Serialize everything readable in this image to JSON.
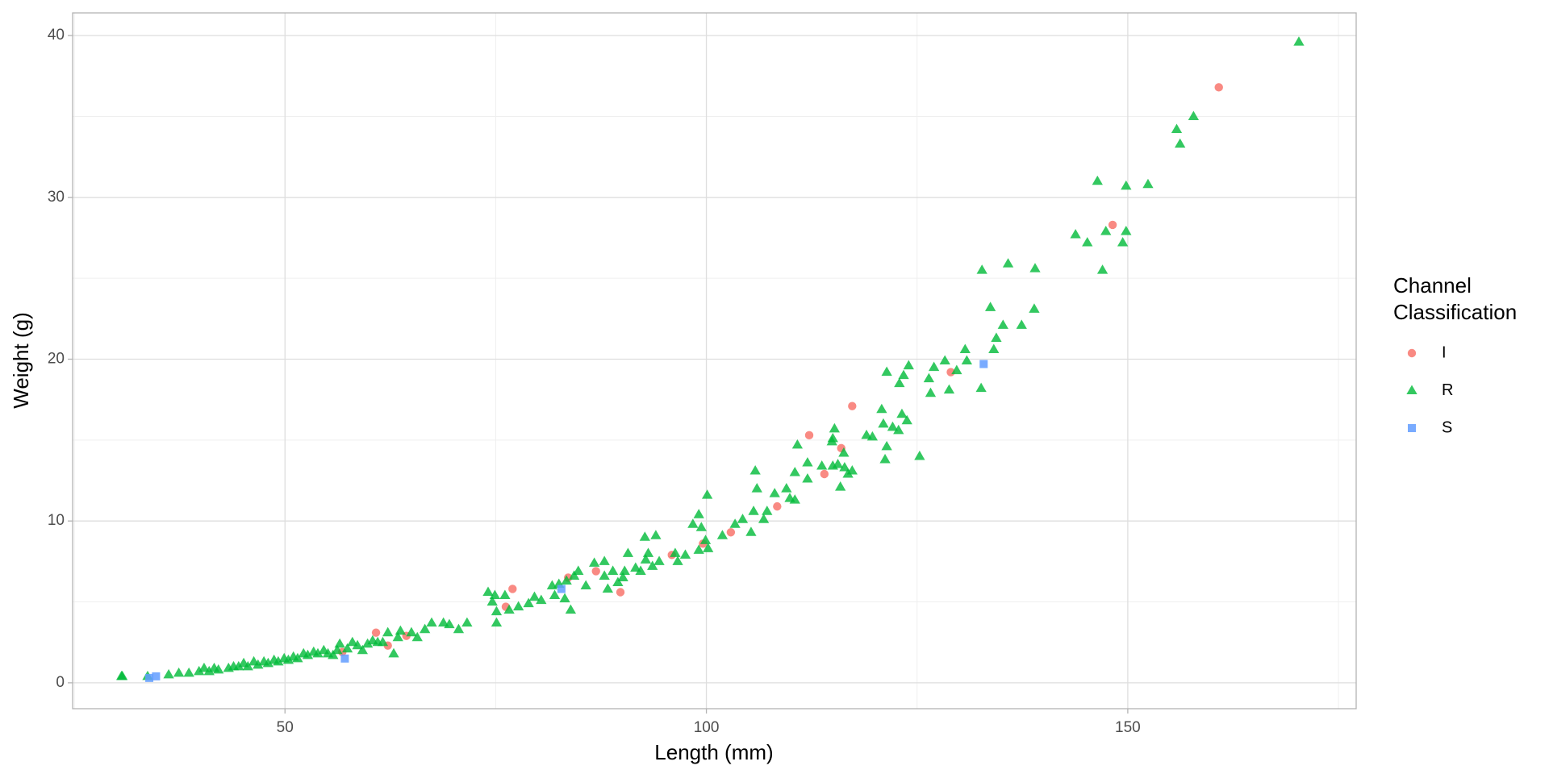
{
  "chart_data": {
    "type": "scatter",
    "x_label": "Length (mm)",
    "y_label": "Weight (g)",
    "legend_title": "Channel\nClassification",
    "legend": "right",
    "xlim": [
      24.8,
      177.1
    ],
    "ylim": [
      -1.6,
      41.4
    ],
    "xticks": [
      50,
      100,
      150
    ],
    "yticks": [
      0,
      10,
      20,
      30,
      40
    ],
    "minor_xticks": [
      25,
      75,
      125,
      175
    ],
    "minor_yticks": [
      5,
      15,
      25,
      35
    ],
    "grid": true,
    "series": [
      {
        "name": "I",
        "color": "#F8766D",
        "marker": "circle",
        "x": [
          160.8,
          148.2,
          129.0,
          117.3,
          112.2,
          116.0,
          114.0,
          108.4,
          102.9,
          99.6,
          95.9,
          89.8,
          86.9,
          83.6,
          77.0,
          76.2,
          64.4,
          62.2,
          60.8,
          56.8
        ],
        "y": [
          36.8,
          28.3,
          19.2,
          17.1,
          15.3,
          14.5,
          12.9,
          10.9,
          9.3,
          8.6,
          7.9,
          5.6,
          6.9,
          6.5,
          5.8,
          4.7,
          2.9,
          2.3,
          3.1,
          1.9
        ]
      },
      {
        "name": "R",
        "color": "#00BA38",
        "marker": "triangle",
        "x": [
          170.3,
          157.8,
          155.8,
          156.2,
          146.4,
          149.8,
          152.4,
          143.8,
          145.2,
          147.4,
          149.4,
          149.8,
          147.0,
          132.7,
          135.8,
          139.0,
          133.7,
          138.9,
          137.4,
          135.2,
          134.4,
          134.1,
          130.7,
          132.6,
          130.9,
          128.3,
          129.7,
          127.0,
          126.4,
          126.6,
          128.8,
          124.0,
          123.4,
          122.9,
          121.4,
          125.3,
          120.8,
          123.2,
          123.8,
          122.1,
          122.8,
          121.0,
          119.7,
          119.0,
          121.4,
          121.2,
          115.2,
          115.0,
          114.9,
          116.3,
          115.6,
          116.4,
          115.0,
          115.9,
          117.3,
          116.8,
          113.7,
          112.0,
          112.0,
          110.5,
          110.8,
          105.8,
          106.0,
          109.5,
          109.9,
          108.1,
          110.5,
          107.2,
          105.6,
          104.3,
          105.3,
          106.8,
          103.4,
          101.9,
          100.1,
          99.1,
          98.4,
          99.4,
          99.9,
          100.2,
          99.1,
          97.5,
          96.6,
          96.3,
          94.4,
          93.6,
          92.8,
          94.0,
          92.7,
          93.1,
          91.6,
          92.2,
          90.7,
          90.3,
          90.1,
          89.5,
          88.9,
          87.9,
          86.7,
          87.9,
          88.3,
          85.7,
          84.8,
          84.3,
          83.4,
          82.5,
          81.7,
          82.0,
          83.2,
          83.9,
          80.4,
          79.6,
          78.9,
          77.7,
          76.6,
          76.1,
          74.9,
          74.1,
          74.6,
          75.1,
          75.1,
          71.6,
          70.6,
          69.5,
          68.8,
          67.4,
          66.6,
          65.7,
          65.0,
          63.4,
          62.9,
          61.6,
          30.7,
          33.7,
          36.2,
          37.4,
          38.6,
          39.8,
          41.0,
          42.1,
          43.3,
          44.5,
          45.6,
          46.8,
          48.0,
          49.2,
          50.4,
          51.5,
          52.7,
          53.9,
          55.1,
          56.2,
          57.4,
          58.6,
          59.8,
          61.0,
          58.0,
          56.5,
          40.4,
          41.6,
          43.9,
          45.1,
          46.3,
          47.5,
          48.7,
          49.9,
          51.0,
          52.2,
          53.4,
          54.6,
          55.7,
          59.2,
          60.4,
          62.2,
          63.7,
          30.6
        ],
        "y": [
          39.6,
          35.0,
          34.2,
          33.3,
          31.0,
          30.7,
          30.8,
          27.7,
          27.2,
          27.9,
          27.2,
          27.9,
          25.5,
          25.5,
          25.9,
          25.6,
          23.2,
          23.1,
          22.1,
          22.1,
          21.3,
          20.6,
          20.6,
          18.2,
          19.9,
          19.9,
          19.3,
          19.5,
          18.8,
          17.9,
          18.1,
          19.6,
          19.0,
          18.5,
          19.2,
          14.0,
          16.9,
          16.6,
          16.2,
          15.8,
          15.6,
          16.0,
          15.2,
          15.3,
          14.6,
          13.8,
          15.7,
          15.1,
          14.9,
          14.2,
          13.5,
          13.3,
          13.4,
          12.1,
          13.1,
          12.9,
          13.4,
          13.6,
          12.6,
          13.0,
          14.7,
          13.1,
          12.0,
          12.0,
          11.4,
          11.7,
          11.3,
          10.6,
          10.6,
          10.1,
          9.3,
          10.1,
          9.8,
          9.1,
          11.6,
          10.4,
          9.8,
          9.6,
          8.8,
          8.3,
          8.2,
          7.9,
          7.5,
          8.0,
          7.5,
          7.2,
          7.6,
          9.1,
          9.0,
          8.0,
          7.1,
          6.9,
          8.0,
          6.9,
          6.5,
          6.2,
          6.9,
          7.5,
          7.4,
          6.6,
          5.8,
          6.0,
          6.9,
          6.6,
          6.3,
          6.1,
          6.0,
          5.4,
          5.2,
          4.5,
          5.1,
          5.3,
          4.9,
          4.7,
          4.5,
          5.4,
          5.4,
          5.6,
          5.0,
          4.4,
          3.7,
          3.7,
          3.3,
          3.6,
          3.7,
          3.7,
          3.3,
          2.8,
          3.1,
          2.8,
          1.8,
          2.5,
          0.4,
          0.4,
          0.5,
          0.6,
          0.6,
          0.7,
          0.7,
          0.8,
          0.9,
          1.0,
          1.0,
          1.1,
          1.2,
          1.3,
          1.4,
          1.5,
          1.7,
          1.8,
          1.8,
          2.0,
          2.1,
          2.3,
          2.4,
          2.5,
          2.5,
          2.4,
          0.9,
          0.9,
          1.0,
          1.2,
          1.3,
          1.3,
          1.4,
          1.5,
          1.6,
          1.8,
          1.9,
          2.0,
          1.7,
          2.0,
          2.6,
          3.1,
          3.2,
          0.4
        ]
      },
      {
        "name": "S",
        "color": "#619CFF",
        "marker": "square",
        "x": [
          132.9,
          82.8,
          57.1,
          34.7,
          33.9
        ],
        "y": [
          19.7,
          5.8,
          1.5,
          0.4,
          0.3
        ]
      }
    ]
  }
}
